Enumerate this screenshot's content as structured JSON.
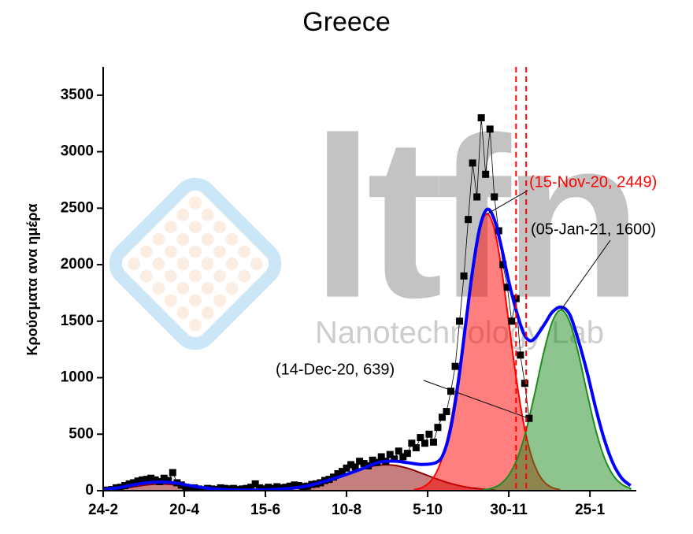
{
  "chart_data": {
    "type": "scatter",
    "title": "Greece",
    "y_label": "Κρούσματα ανα ημέρα",
    "watermark": [
      "ltfn",
      "Nanotechnology Lab"
    ],
    "xlim": [
      0,
      368
    ],
    "xticks": [
      {
        "value": 0,
        "label": "24-2"
      },
      {
        "value": 56,
        "label": "20-4"
      },
      {
        "value": 112,
        "label": "15-6"
      },
      {
        "value": 168,
        "label": "10-8"
      },
      {
        "value": 224,
        "label": "5-10"
      },
      {
        "value": 280,
        "label": "30-11"
      },
      {
        "value": 336,
        "label": "25-1"
      }
    ],
    "ylim": [
      0,
      3750
    ],
    "yticks": [
      0,
      500,
      1000,
      1500,
      2000,
      2500,
      3000,
      3500
    ],
    "vlines": [
      285,
      292
    ],
    "vline_color": "#ff0000",
    "series": [
      {
        "type": "area",
        "color": "#8b0000",
        "x": [
          0,
          10,
          20,
          30,
          40,
          50,
          60,
          70,
          80,
          90
        ],
        "values": [
          5,
          15,
          32,
          51,
          60,
          51,
          32,
          15,
          5,
          1
        ]
      },
      {
        "type": "area",
        "color": "#8b0000",
        "x": [
          110,
          120,
          130,
          140,
          150,
          160,
          170,
          180,
          190,
          200,
          210,
          220,
          230,
          240,
          250,
          260,
          270
        ],
        "values": [
          2,
          6,
          16,
          33,
          63,
          105,
          154,
          199,
          226,
          226,
          199,
          154,
          105,
          63,
          33,
          16,
          6
        ]
      },
      {
        "type": "area",
        "color": "#ff0000",
        "x": [
          215,
          220,
          225,
          230,
          235,
          240,
          245,
          250,
          255,
          260,
          265,
          270,
          275,
          280,
          285,
          290,
          295,
          300,
          305,
          310,
          315
        ],
        "values": [
          10,
          27,
          70,
          161,
          331,
          610,
          1007,
          1486,
          1961,
          2317,
          2449,
          2317,
          1961,
          1486,
          1007,
          610,
          331,
          161,
          70,
          27,
          10
        ]
      },
      {
        "type": "area",
        "color": "#1e8c1e",
        "x": [
          262,
          268,
          274,
          280,
          286,
          292,
          298,
          304,
          310,
          316,
          322,
          328,
          334,
          340,
          346,
          352,
          358,
          364
        ],
        "values": [
          6,
          20,
          56,
          137,
          289,
          537,
          865,
          1217,
          1494,
          1600,
          1494,
          1217,
          865,
          537,
          289,
          137,
          56,
          20
        ]
      },
      {
        "type": "scatter",
        "color": "#000000",
        "x": [
          0,
          3,
          6,
          9,
          12,
          15,
          18,
          21,
          24,
          27,
          30,
          33,
          36,
          39,
          42,
          45,
          48,
          51,
          54,
          57,
          60,
          63,
          66,
          69,
          72,
          75,
          78,
          81,
          84,
          87,
          90,
          93,
          96,
          99,
          102,
          105,
          108,
          111,
          114,
          117,
          120,
          123,
          126,
          129,
          132,
          135,
          138,
          141,
          144,
          147,
          150,
          153,
          156,
          159,
          162,
          165,
          168,
          171,
          174,
          177,
          180,
          183,
          186,
          189,
          192,
          195,
          198,
          201,
          204,
          207,
          210,
          213,
          216,
          219,
          222,
          225,
          228,
          231,
          234,
          237,
          240,
          243,
          246,
          249,
          252,
          255,
          258,
          261,
          264,
          267,
          270,
          273,
          276,
          279,
          282,
          285,
          288,
          291,
          294
        ],
        "values": [
          3,
          5,
          10,
          25,
          30,
          45,
          60,
          70,
          85,
          95,
          100,
          110,
          95,
          80,
          110,
          90,
          160,
          70,
          50,
          30,
          20,
          25,
          15,
          10,
          20,
          15,
          10,
          25,
          20,
          15,
          20,
          10,
          15,
          20,
          30,
          60,
          25,
          15,
          30,
          20,
          35,
          25,
          30,
          40,
          50,
          45,
          35,
          40,
          55,
          60,
          70,
          90,
          100,
          120,
          150,
          170,
          200,
          230,
          210,
          260,
          240,
          220,
          270,
          250,
          300,
          260,
          320,
          280,
          350,
          300,
          330,
          420,
          380,
          470,
          420,
          500,
          430,
          560,
          650,
          700,
          880,
          1100,
          1500,
          1900,
          2400,
          2900,
          2600,
          3300,
          2800,
          3200,
          2600,
          2300,
          2000,
          1800,
          1500,
          1700,
          1200,
          950,
          640
        ]
      },
      {
        "type": "line",
        "color": "#0000ff",
        "x": [
          0,
          10,
          20,
          30,
          40,
          50,
          60,
          70,
          80,
          90,
          100,
          120,
          140,
          160,
          180,
          190,
          200,
          210,
          220,
          230,
          235,
          240,
          245,
          250,
          255,
          260,
          265,
          270,
          275,
          280,
          285,
          290,
          294,
          298,
          305,
          310,
          316,
          322,
          328,
          334,
          340,
          346,
          352,
          358,
          364
        ],
        "values": [
          10,
          25,
          50,
          70,
          77,
          68,
          45,
          25,
          12,
          6,
          5,
          12,
          40,
          110,
          200,
          250,
          262,
          248,
          232,
          250,
          330,
          560,
          950,
          1450,
          1950,
          2330,
          2490,
          2400,
          2150,
          1850,
          1600,
          1400,
          1330,
          1350,
          1480,
          1580,
          1625,
          1560,
          1330,
          1050,
          730,
          450,
          240,
          110,
          45
        ]
      }
    ],
    "annotations": [
      {
        "text": "(15-Nov-20, 2449)",
        "x": 265,
        "y": 2449,
        "color": "#ff0000"
      },
      {
        "text": "(05-Jan-21, 1600)",
        "x": 316,
        "y": 1600,
        "color": "#000000"
      },
      {
        "text": "(14-Dec-20, 639)",
        "x": 294,
        "y": 639,
        "color": "#000000"
      }
    ]
  }
}
